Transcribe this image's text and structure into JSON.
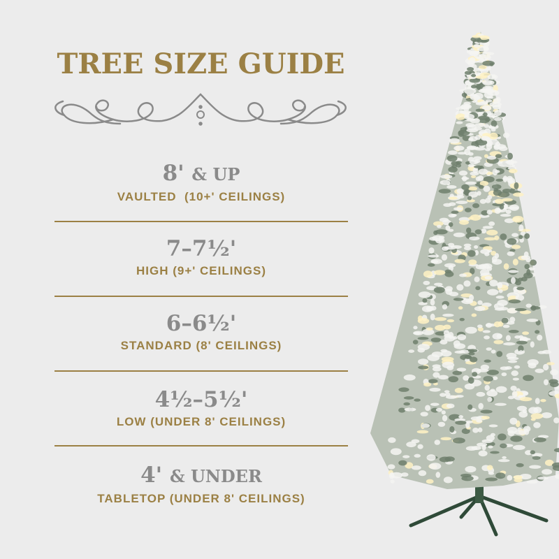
{
  "title": "TREE SIZE GUIDE",
  "colors": {
    "accent": "#9b8044",
    "text_gray": "#8a8a8a",
    "background": "#ececec"
  },
  "sizes": [
    {
      "size": "8'",
      "suffix": "& UP",
      "label": "VAULTED  (10+' CEILINGS)"
    },
    {
      "size": "7–7½'",
      "suffix": "",
      "label": "HIGH (9+' CEILINGS)"
    },
    {
      "size": "6–6½'",
      "suffix": "",
      "label": "STANDARD (8' CEILINGS)"
    },
    {
      "size": "4½–5½'",
      "suffix": "",
      "label": "LOW (UNDER 8' CEILINGS)"
    },
    {
      "size": "4'",
      "suffix": "& UNDER",
      "label": "TABLETOP (UNDER 8' CEILINGS)"
    }
  ],
  "image": {
    "subject": "flocked-christmas-tree"
  }
}
